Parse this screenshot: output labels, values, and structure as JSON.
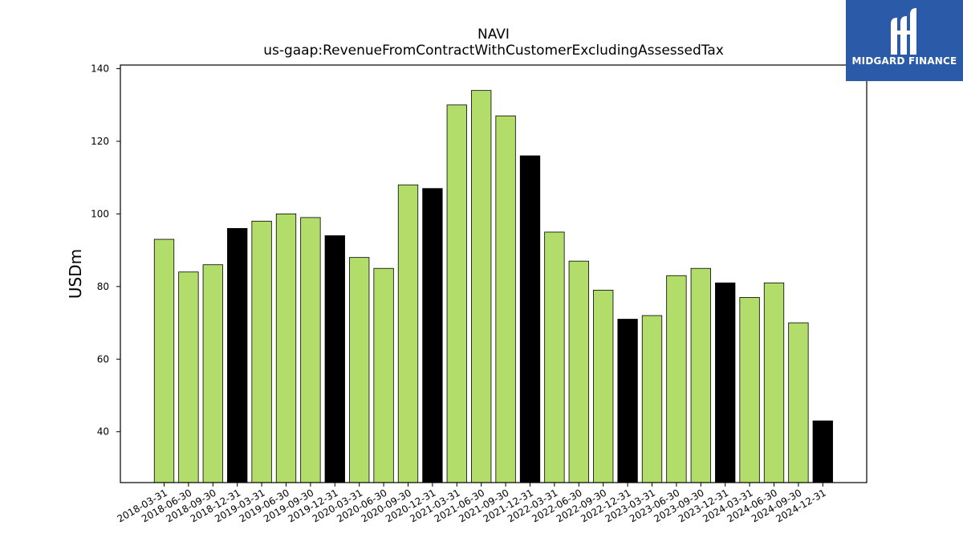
{
  "chart_data": {
    "type": "bar",
    "title": "NAVI",
    "subtitle": "us-gaap:RevenueFromContractWithCustomerExcludingAssessedTax",
    "xlabel": "",
    "ylabel": "USDm",
    "ylim": [
      26,
      141
    ],
    "yticks": [
      40,
      60,
      80,
      100,
      120,
      140
    ],
    "grid": false,
    "colors": {
      "quarter": "#b2dd6b",
      "year_end": "#000000",
      "edge": "#000000"
    },
    "categories": [
      "2018-03-31",
      "2018-06-30",
      "2018-09-30",
      "2018-12-31",
      "2019-03-31",
      "2019-06-30",
      "2019-09-30",
      "2019-12-31",
      "2020-03-31",
      "2020-06-30",
      "2020-09-30",
      "2020-12-31",
      "2021-03-31",
      "2021-06-30",
      "2021-09-30",
      "2021-12-31",
      "2022-03-31",
      "2022-06-30",
      "2022-09-30",
      "2022-12-31",
      "2023-03-31",
      "2023-06-30",
      "2023-09-30",
      "2023-12-31",
      "2024-03-31",
      "2024-06-30",
      "2024-09-30",
      "2024-12-31"
    ],
    "values": [
      93,
      84,
      86,
      96,
      98,
      100,
      99,
      94,
      88,
      85,
      108,
      107,
      130,
      134,
      127,
      116,
      95,
      87,
      79,
      71,
      72,
      83,
      85,
      81,
      77,
      81,
      70,
      43
    ]
  },
  "logo": {
    "text": "MIDGARD FINANCE",
    "color": "#2a5aa8"
  }
}
